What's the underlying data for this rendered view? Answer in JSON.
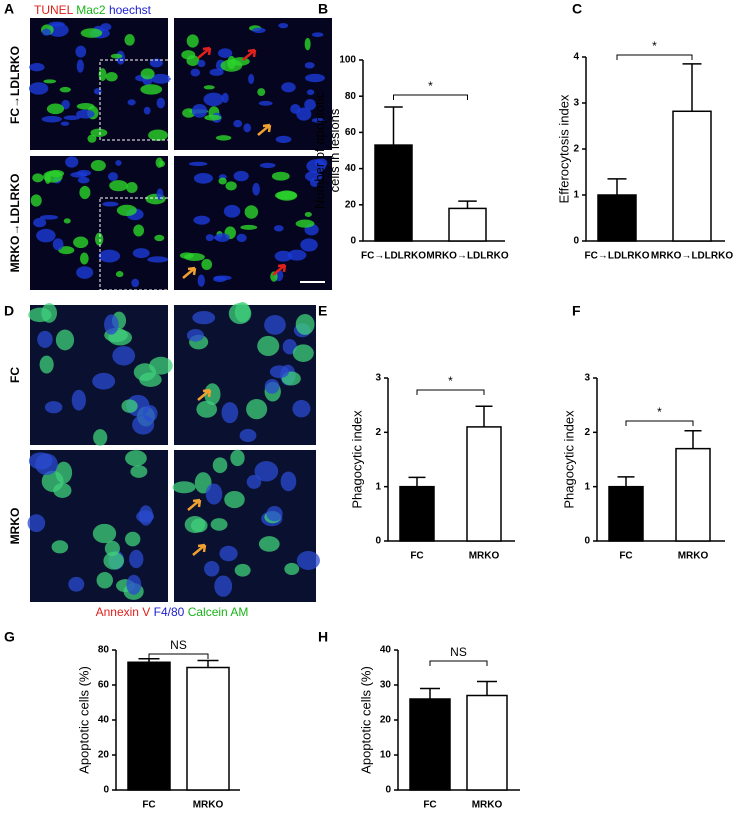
{
  "figure": {
    "panel_a": {
      "letter": "A",
      "stains": [
        "TUNEL",
        "Mac2",
        "hoechst"
      ],
      "rows": [
        "FC→LDLRKO",
        "MRKO→LDLRKO"
      ]
    },
    "panel_d": {
      "letter": "D",
      "rows": [
        "FC",
        "MRKO"
      ],
      "stains": [
        "Annexin V",
        "F4/80",
        "Calcein AM"
      ]
    }
  },
  "chart_data": [
    {
      "type": "bar",
      "panel": "B",
      "ylabel": [
        "Number of apoptotic",
        "cells  in lesions"
      ],
      "categories": [
        "FC→LDLRKO",
        "MRKO→LDLRKO"
      ],
      "values": [
        53,
        18
      ],
      "errors": [
        21,
        4
      ],
      "colors": [
        "#000000",
        "#ffffff"
      ],
      "ylim": [
        0,
        100
      ],
      "yticks": [
        0,
        20,
        40,
        60,
        80,
        100
      ],
      "annotation": "*"
    },
    {
      "type": "bar",
      "panel": "C",
      "ylabel": "Efferocytosis index",
      "categories": [
        "FC→LDLRKO",
        "MRKO→LDLRKO"
      ],
      "values": [
        1.0,
        2.82
      ],
      "errors": [
        0.35,
        1.03
      ],
      "colors": [
        "#000000",
        "#ffffff"
      ],
      "ylim": [
        0,
        4
      ],
      "yticks": [
        0,
        1,
        2,
        3,
        4
      ],
      "annotation": "*"
    },
    {
      "type": "bar",
      "panel": "E",
      "ylabel": "Phagocytic index",
      "categories": [
        "FC",
        "MRKO"
      ],
      "values": [
        1.0,
        2.1
      ],
      "errors": [
        0.17,
        0.38
      ],
      "colors": [
        "#000000",
        "#ffffff"
      ],
      "ylim": [
        0,
        3
      ],
      "yticks": [
        0,
        1,
        2,
        3
      ],
      "annotation": "*"
    },
    {
      "type": "bar",
      "panel": "F",
      "ylabel": "Phagocytic index",
      "categories": [
        "FC",
        "MRKO"
      ],
      "values": [
        1.0,
        1.7
      ],
      "errors": [
        0.18,
        0.33
      ],
      "colors": [
        "#000000",
        "#ffffff"
      ],
      "ylim": [
        0,
        3
      ],
      "yticks": [
        0,
        1,
        2,
        3
      ],
      "annotation": "*"
    },
    {
      "type": "bar",
      "panel": "G",
      "ylabel": "Apoptotic cells (%)",
      "categories": [
        "FC",
        "MRKO"
      ],
      "values": [
        73,
        70
      ],
      "errors": [
        2,
        4
      ],
      "colors": [
        "#000000",
        "#ffffff"
      ],
      "ylim": [
        0,
        80
      ],
      "yticks": [
        0,
        20,
        40,
        60,
        80
      ],
      "annotation": "NS"
    },
    {
      "type": "bar",
      "panel": "H",
      "ylabel": "Apoptotic cells (%)",
      "categories": [
        "FC",
        "MRKO"
      ],
      "values": [
        26,
        27
      ],
      "errors": [
        3,
        4
      ],
      "colors": [
        "#000000",
        "#ffffff"
      ],
      "ylim": [
        0,
        40
      ],
      "yticks": [
        0,
        10,
        20,
        30,
        40
      ],
      "annotation": "NS"
    }
  ]
}
